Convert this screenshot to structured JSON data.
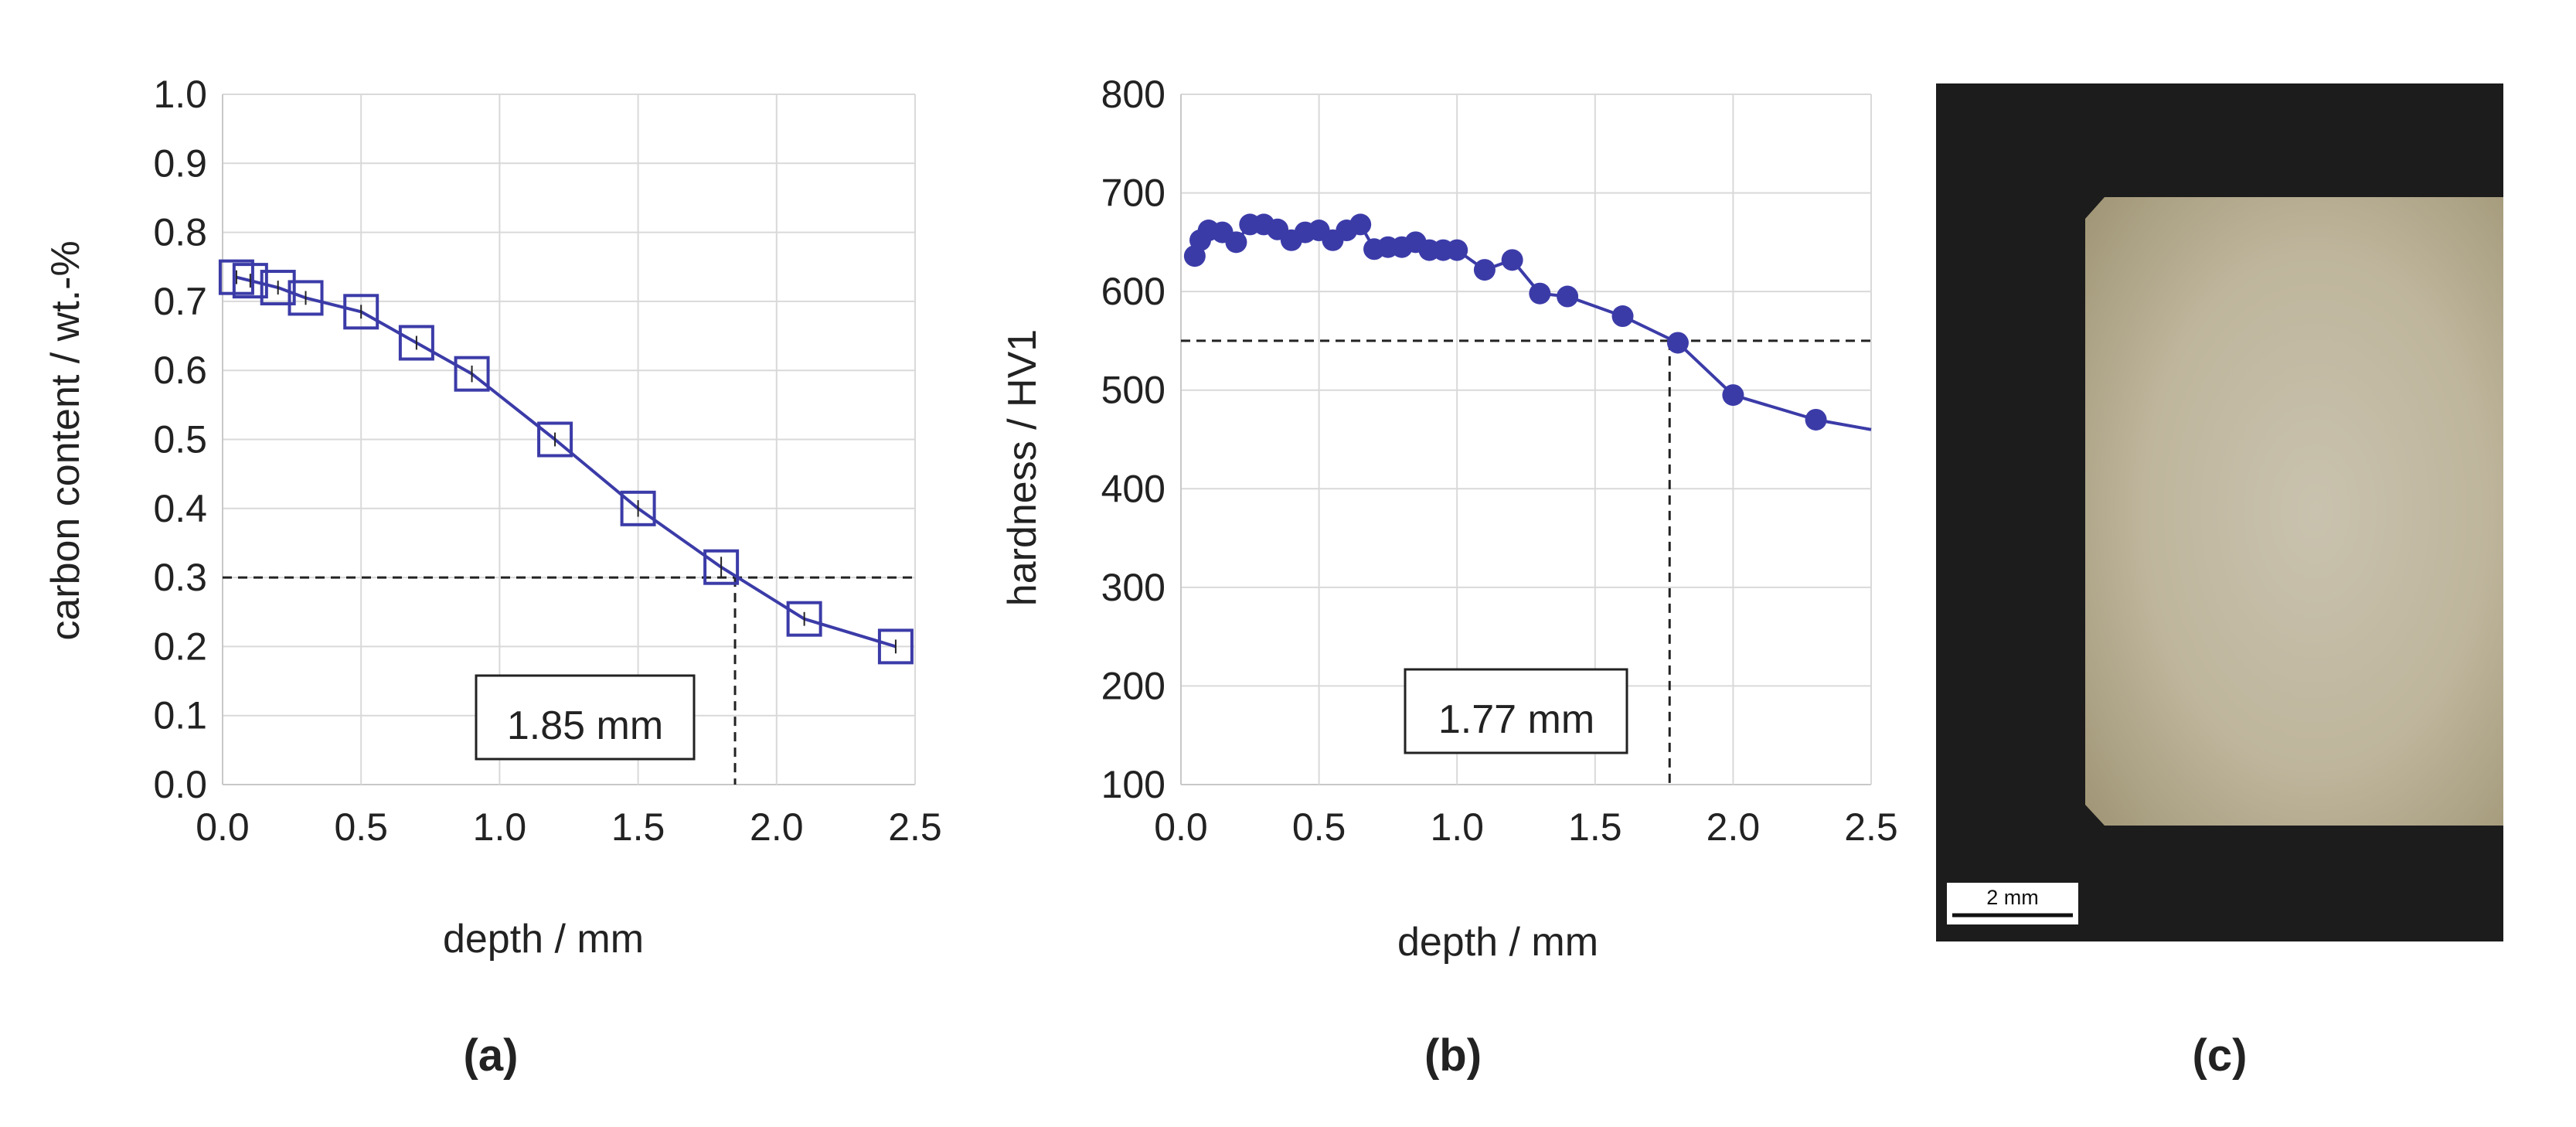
{
  "colors": {
    "series": "#3b3ba8",
    "grid": "#d9d9d9",
    "axis": "#c8c8c8",
    "reference": "#222222",
    "micrograph_background": "#1c1c1c",
    "micrograph_sample": "#bfb69c"
  },
  "panels": {
    "a": "(a)",
    "b": "(b)",
    "c": "(c)"
  },
  "chart_data": [
    {
      "type": "line",
      "marker": "open-square",
      "xlabel": "depth / mm",
      "ylabel": "carbon content / wt.-%",
      "xlim": [
        0,
        2.5
      ],
      "ylim": [
        0,
        1.0
      ],
      "xticks": [
        "0.0",
        "0.5",
        "1.0",
        "1.5",
        "2.0",
        "2.5"
      ],
      "yticks": [
        "0.0",
        "0.1",
        "0.2",
        "0.3",
        "0.4",
        "0.5",
        "0.6",
        "0.7",
        "0.8",
        "0.9",
        "1.0"
      ],
      "grid": true,
      "x": [
        0.05,
        0.1,
        0.2,
        0.3,
        0.5,
        0.7,
        0.9,
        1.2,
        1.5,
        1.8,
        2.1,
        2.43
      ],
      "y": [
        0.735,
        0.73,
        0.72,
        0.705,
        0.685,
        0.64,
        0.595,
        0.5,
        0.4,
        0.315,
        0.24,
        0.2
      ],
      "error": [
        0.01,
        0.01,
        0.01,
        0.01,
        0.01,
        0.01,
        0.012,
        0.01,
        0.012,
        0.015,
        0.01,
        0.01
      ],
      "reference": {
        "y": 0.3,
        "x": 1.85
      },
      "annotation": "1.85 mm"
    },
    {
      "type": "line",
      "marker": "filled-circle",
      "xlabel": "depth / mm",
      "ylabel": "hardness / HV1",
      "xlim": [
        0,
        2.5
      ],
      "ylim": [
        100,
        800
      ],
      "xticks": [
        "0.0",
        "0.5",
        "1.0",
        "1.5",
        "2.0",
        "2.5"
      ],
      "yticks": [
        "100",
        "200",
        "300",
        "400",
        "500",
        "600",
        "700",
        "800"
      ],
      "grid": true,
      "x": [
        0.05,
        0.07,
        0.1,
        0.15,
        0.2,
        0.25,
        0.3,
        0.35,
        0.4,
        0.45,
        0.5,
        0.55,
        0.6,
        0.65,
        0.7,
        0.75,
        0.8,
        0.85,
        0.9,
        0.95,
        1.0,
        1.1,
        1.2,
        1.3,
        1.4,
        1.6,
        1.8,
        2.0,
        2.3
      ],
      "y": [
        636,
        652,
        662,
        660,
        650,
        668,
        668,
        663,
        652,
        660,
        662,
        652,
        662,
        668,
        643,
        645,
        645,
        650,
        642,
        642,
        642,
        622,
        632,
        598,
        595,
        575,
        548,
        495,
        470
      ],
      "line_end": {
        "x": 2.5,
        "y": 460
      },
      "reference": {
        "y": 550,
        "x": 1.77
      },
      "annotation": "1.77 mm"
    }
  ],
  "micrograph": {
    "scale_bar_label": "2 mm"
  }
}
